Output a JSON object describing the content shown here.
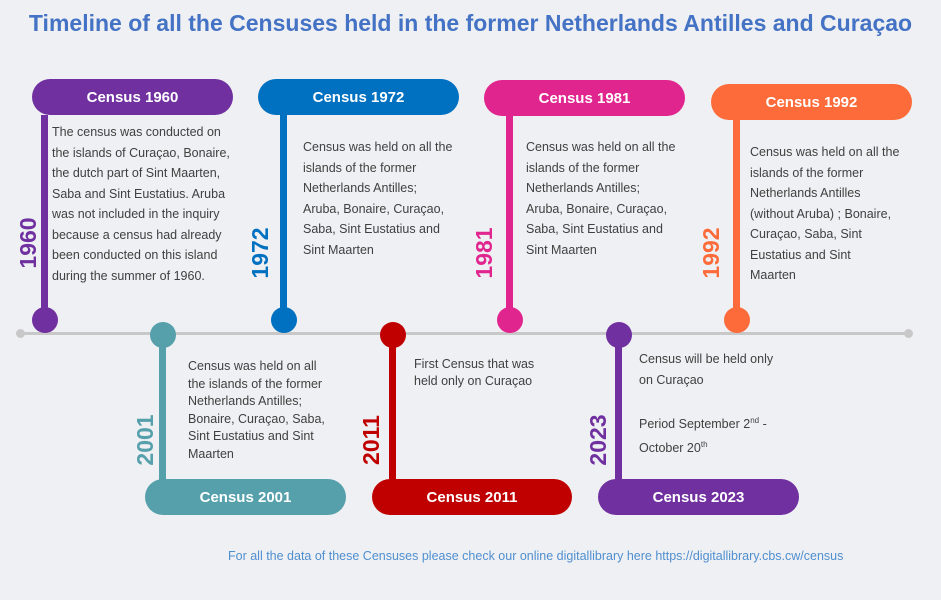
{
  "title": "Timeline of all the Censuses held in the former Netherlands Antilles and Curaçao",
  "colors": {
    "1960": "#7030a0",
    "1972": "#0070c0",
    "1981": "#e0258f",
    "1992": "#fd6b3a",
    "2001": "#55a0ab",
    "2011": "#c00000",
    "2023": "#7030a0",
    "title": "#4472c4",
    "axis": "#c8c8c8"
  },
  "censuses": {
    "c1960": {
      "label": "Census 1960",
      "year": "1960",
      "text": [
        "The census was conducted on",
        "the islands of Curaçao, Bonaire,",
        "the dutch part of Sint Maarten,",
        "Saba and Sint Eustatius. Aruba",
        "was not included in the inquiry",
        "because a census had already",
        "been conducted on this island",
        "during the summer of 1960."
      ]
    },
    "c1972": {
      "label": "Census 1972",
      "year": "1972",
      "text": [
        "Census was held on all the",
        "islands of the former",
        "Netherlands Antilles;",
        "Aruba, Bonaire, Curaçao,",
        "Saba, Sint Eustatius and",
        "Sint Maarten"
      ]
    },
    "c1981": {
      "label": "Census 1981",
      "year": "1981",
      "text": [
        "Census was held on all the",
        "islands of the former",
        "Netherlands Antilles;",
        "Aruba, Bonaire, Curaçao,",
        "Saba, Sint Eustatius and",
        "Sint Maarten"
      ]
    },
    "c1992": {
      "label": "Census 1992",
      "year": "1992",
      "text": [
        "Census was held on all the",
        "islands of the former",
        "Netherlands Antilles",
        "(without Aruba) ; Bonaire,",
        "Curaçao, Saba, Sint",
        "Eustatius and Sint",
        "Maarten"
      ]
    },
    "c2001": {
      "label": "Census 2001",
      "year": "2001",
      "text": [
        "Census was held on all",
        "the islands of the former",
        "Netherlands Antilles;",
        "Bonaire, Curaçao, Saba,",
        "Sint Eustatius and Sint",
        "Maarten"
      ]
    },
    "c2011": {
      "label": "Census 2011",
      "year": "2011",
      "text": [
        "First Census that was",
        "held only on Curaçao"
      ]
    },
    "c2023": {
      "label": "Census 2023",
      "year": "2023",
      "text": [
        "Census will be held only",
        "on Curaçao"
      ],
      "period_prefix": "Period September 2",
      "period_sup1": "nd",
      "period_mid": " -",
      "period_line2": "October 20",
      "period_sup2": "th"
    }
  },
  "footer": "For all the data of these Censuses please check our online digitallibrary here https://digitallibrary.cbs.cw/census"
}
